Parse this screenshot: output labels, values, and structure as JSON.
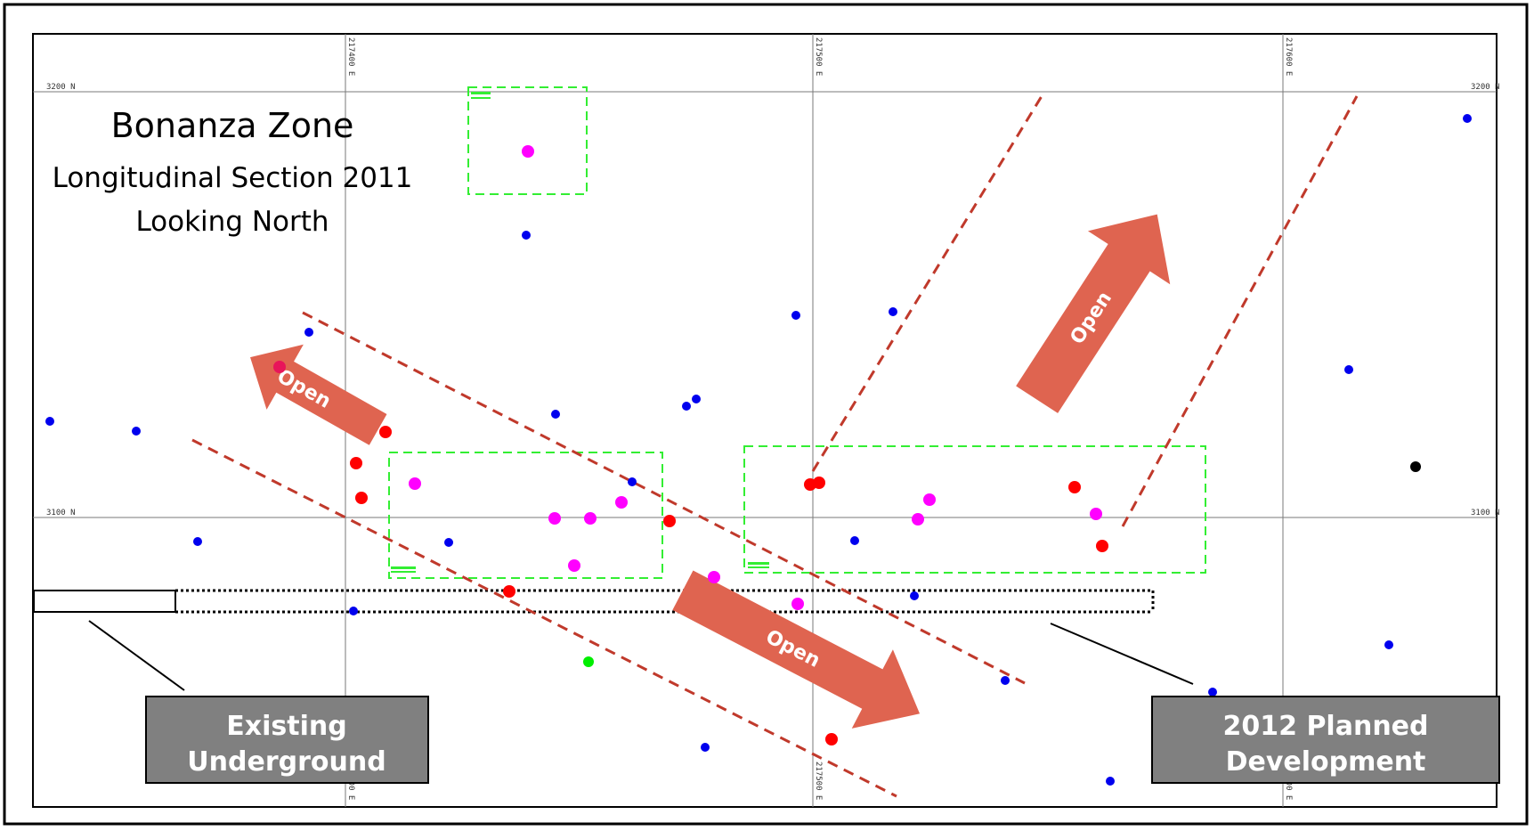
{
  "title": {
    "line1": "Bonanza Zone",
    "line2": "Longitudinal Section 2011",
    "line3": "Looking North"
  },
  "grid": {
    "easting_labels": [
      "217400 E",
      "217500 E",
      "217600 E"
    ],
    "northing_labels": [
      "3200 N",
      "3100 N"
    ]
  },
  "arrows": [
    {
      "label": "Open"
    },
    {
      "label": "Open"
    },
    {
      "label": "Open"
    }
  ],
  "boxes": {
    "existing": {
      "line1": "Existing",
      "line2": "Underground"
    },
    "planned": {
      "line1": "2012 Planned",
      "line2": "Development"
    }
  },
  "colors": {
    "drillhole_blue": "#0000ee",
    "drillhole_magenta": "#ff00ff",
    "drillhole_red": "#ff0000",
    "drillhole_green": "#00ee00",
    "drillhole_black": "#000000",
    "trend_line": "#c0392b",
    "open_arrow": "#df6450",
    "target_box": "#33ee33",
    "label_box_fill": "#808080"
  }
}
